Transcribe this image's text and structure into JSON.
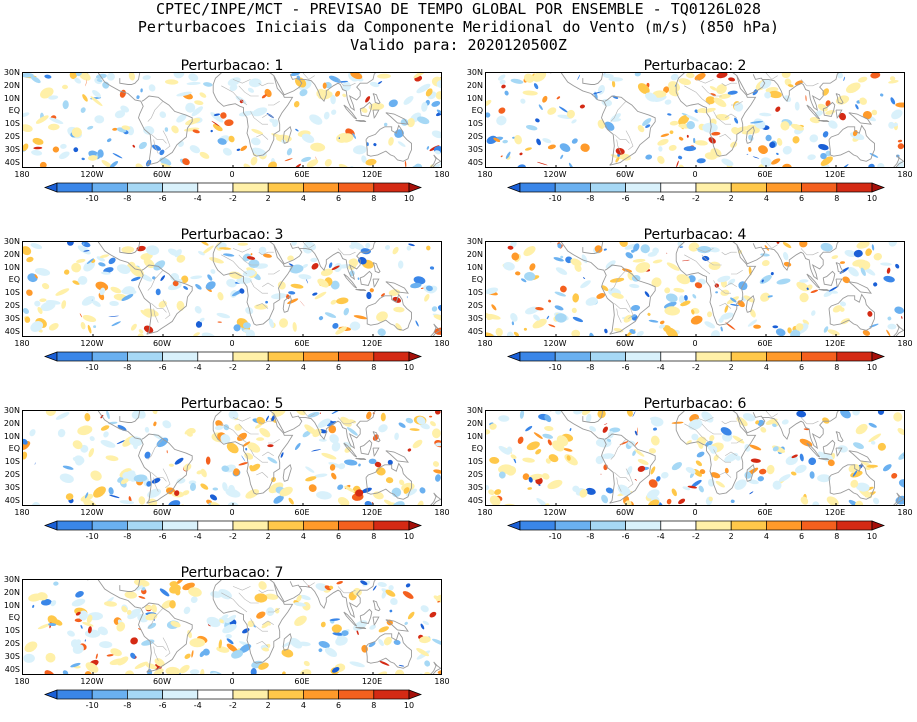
{
  "header": {
    "line1": "CPTEC/INPE/MCT - PREVISAO DE TEMPO GLOBAL POR ENSEMBLE - TQ0126L028",
    "line2": "Perturbacoes Iniciais da Componente Meridional do Vento (m/s) (850 hPa)",
    "line3": "Valido para: 2020120500Z"
  },
  "panels": [
    {
      "title": "Perturbacao: 1"
    },
    {
      "title": "Perturbacao: 2"
    },
    {
      "title": "Perturbacao: 3"
    },
    {
      "title": "Perturbacao: 4"
    },
    {
      "title": "Perturbacao: 5"
    },
    {
      "title": "Perturbacao: 6"
    },
    {
      "title": "Perturbacao: 7"
    }
  ],
  "lat_labels": [
    "30N",
    "20N",
    "10N",
    "EQ",
    "10S",
    "20S",
    "30S",
    "40S"
  ],
  "lon_labels": [
    "180",
    "120W",
    "60W",
    "0",
    "60E",
    "120E",
    "180"
  ],
  "colorbar": {
    "labels": [
      "-10",
      "-8",
      "-6",
      "-4",
      "-2",
      "2",
      "4",
      "6",
      "8",
      "10"
    ],
    "colors": [
      "#1a5fd6",
      "#3a86e8",
      "#6ab0f0",
      "#a6d8f5",
      "#d9f1fb",
      "#ffffff",
      "#fff0a8",
      "#ffc84a",
      "#ff9a2a",
      "#f4601e",
      "#d42a14",
      "#a5100a"
    ]
  }
}
